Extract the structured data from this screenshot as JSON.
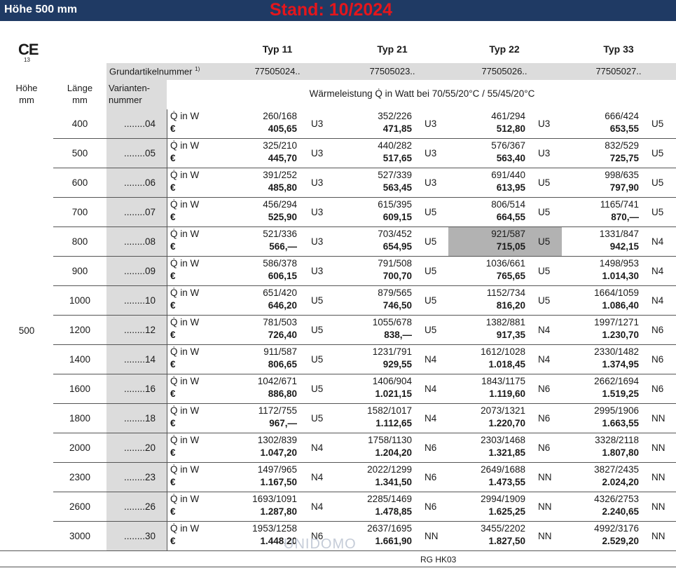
{
  "header": {
    "title": "Höhe 500 mm",
    "stand": "Stand: 10/2024"
  },
  "ce": {
    "mark": "CE",
    "number": "13"
  },
  "types": [
    "Typ 11",
    "Typ 21",
    "Typ 22",
    "Typ 33"
  ],
  "grundartikel": {
    "label": "Grundartikelnummer",
    "footnote": "1)",
    "values": [
      "77505024..",
      "77505023..",
      "77505026..",
      "77505027.."
    ]
  },
  "columns": {
    "hoehe": [
      "Höhe",
      "mm"
    ],
    "laenge": [
      "Länge",
      "mm"
    ],
    "variante": [
      "Varianten-",
      "nummer"
    ]
  },
  "waerme_header": "Wärmeleistung Q̇ in Watt bei 70/55/20°C / 55/45/20°C",
  "q_label": "Q̇ in W",
  "euro_label": "€",
  "hoehe_value": "500",
  "rows": [
    {
      "laenge": "400",
      "var": "........04",
      "cells": [
        [
          "260/168",
          "405,65",
          "U3"
        ],
        [
          "352/226",
          "471,85",
          "U3"
        ],
        [
          "461/294",
          "512,80",
          "U3"
        ],
        [
          "666/424",
          "653,55",
          "U5"
        ]
      ]
    },
    {
      "laenge": "500",
      "var": "........05",
      "cells": [
        [
          "325/210",
          "445,70",
          "U3"
        ],
        [
          "440/282",
          "517,65",
          "U3"
        ],
        [
          "576/367",
          "563,40",
          "U3"
        ],
        [
          "832/529",
          "725,75",
          "U5"
        ]
      ]
    },
    {
      "laenge": "600",
      "var": "........06",
      "cells": [
        [
          "391/252",
          "485,80",
          "U3"
        ],
        [
          "527/339",
          "563,45",
          "U3"
        ],
        [
          "691/440",
          "613,95",
          "U5"
        ],
        [
          "998/635",
          "797,90",
          "U5"
        ]
      ]
    },
    {
      "laenge": "700",
      "var": "........07",
      "cells": [
        [
          "456/294",
          "525,90",
          "U3"
        ],
        [
          "615/395",
          "609,15",
          "U5"
        ],
        [
          "806/514",
          "664,55",
          "U5"
        ],
        [
          "1165/741",
          "870,—",
          "U5"
        ]
      ]
    },
    {
      "laenge": "800",
      "var": "........08",
      "cells": [
        [
          "521/336",
          "566,—",
          "U3"
        ],
        [
          "703/452",
          "654,95",
          "U5"
        ],
        [
          "921/587",
          "715,05",
          "U5"
        ],
        [
          "1331/847",
          "942,15",
          "N4"
        ]
      ]
    },
    {
      "laenge": "900",
      "var": "........09",
      "cells": [
        [
          "586/378",
          "606,15",
          "U3"
        ],
        [
          "791/508",
          "700,70",
          "U5"
        ],
        [
          "1036/661",
          "765,65",
          "U5"
        ],
        [
          "1498/953",
          "1.014,30",
          "N4"
        ]
      ]
    },
    {
      "laenge": "1000",
      "var": "........10",
      "cells": [
        [
          "651/420",
          "646,20",
          "U5"
        ],
        [
          "879/565",
          "746,50",
          "U5"
        ],
        [
          "1152/734",
          "816,20",
          "U5"
        ],
        [
          "1664/1059",
          "1.086,40",
          "N4"
        ]
      ]
    },
    {
      "laenge": "1200",
      "var": "........12",
      "cells": [
        [
          "781/503",
          "726,40",
          "U5"
        ],
        [
          "1055/678",
          "838,—",
          "U5"
        ],
        [
          "1382/881",
          "917,35",
          "N4"
        ],
        [
          "1997/1271",
          "1.230,70",
          "N6"
        ]
      ]
    },
    {
      "laenge": "1400",
      "var": "........14",
      "cells": [
        [
          "911/587",
          "806,65",
          "U5"
        ],
        [
          "1231/791",
          "929,55",
          "N4"
        ],
        [
          "1612/1028",
          "1.018,45",
          "N4"
        ],
        [
          "2330/1482",
          "1.374,95",
          "N6"
        ]
      ]
    },
    {
      "laenge": "1600",
      "var": "........16",
      "cells": [
        [
          "1042/671",
          "886,80",
          "U5"
        ],
        [
          "1406/904",
          "1.021,15",
          "N4"
        ],
        [
          "1843/1175",
          "1.119,60",
          "N6"
        ],
        [
          "2662/1694",
          "1.519,25",
          "N6"
        ]
      ]
    },
    {
      "laenge": "1800",
      "var": "........18",
      "cells": [
        [
          "1172/755",
          "967,—",
          "U5"
        ],
        [
          "1582/1017",
          "1.112,65",
          "N4"
        ],
        [
          "2073/1321",
          "1.220,70",
          "N6"
        ],
        [
          "2995/1906",
          "1.663,55",
          "NN"
        ]
      ]
    },
    {
      "laenge": "2000",
      "var": "........20",
      "cells": [
        [
          "1302/839",
          "1.047,20",
          "N4"
        ],
        [
          "1758/1130",
          "1.204,20",
          "N6"
        ],
        [
          "2303/1468",
          "1.321,85",
          "N6"
        ],
        [
          "3328/2118",
          "1.807,80",
          "NN"
        ]
      ]
    },
    {
      "laenge": "2300",
      "var": "........23",
      "cells": [
        [
          "1497/965",
          "1.167,50",
          "N4"
        ],
        [
          "2022/1299",
          "1.341,50",
          "N6"
        ],
        [
          "2649/1688",
          "1.473,55",
          "NN"
        ],
        [
          "3827/2435",
          "2.024,20",
          "NN"
        ]
      ]
    },
    {
      "laenge": "2600",
      "var": "........26",
      "cells": [
        [
          "1693/1091",
          "1.287,80",
          "N4"
        ],
        [
          "2285/1469",
          "1.478,85",
          "N6"
        ],
        [
          "2994/1909",
          "1.625,25",
          "NN"
        ],
        [
          "4326/2753",
          "2.240,65",
          "NN"
        ]
      ]
    },
    {
      "laenge": "3000",
      "var": "........30",
      "cells": [
        [
          "1953/1258",
          "1.448,20",
          "N6"
        ],
        [
          "2637/1695",
          "1.661,90",
          "NN"
        ],
        [
          "3455/2202",
          "1.827,50",
          "NN"
        ],
        [
          "4992/3176",
          "2.529,20",
          "NN"
        ]
      ]
    }
  ],
  "highlight": {
    "row": 4,
    "col": 2
  },
  "footer_code": "RG HK03",
  "watermark": "UNIDOMO"
}
